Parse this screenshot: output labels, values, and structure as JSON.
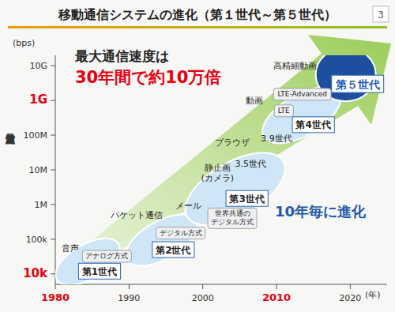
{
  "chart_data": {
    "type": "scatter",
    "title": "移動通信システムの進化（第１世代～第５世代）",
    "page": "3",
    "headline": "最大通信速度は",
    "headline_emphasis": "30年間で約10万倍",
    "annotation_main": "10年毎に進化",
    "x_label": "(年)",
    "y_label": "最大通信速度",
    "y_unit": "(bps)",
    "log": "y",
    "grid": false,
    "x": [
      1986,
      1996,
      2006,
      2015,
      2021
    ],
    "values": [
      12000,
      50000,
      1500000,
      200000000,
      3000000000
    ],
    "labels": [
      "第1世代",
      "第2世代",
      "第3世代",
      "第4世代",
      "第５世代"
    ],
    "colors": [
      "#cfe6f6",
      "#cfe6f6",
      "#cfe6f6",
      "#cfe6f6",
      "#1d4f9e"
    ],
    "xlim": [
      1980,
      2025
    ],
    "xticks": [
      {
        "value": 1980,
        "label": "1980",
        "color": "#e60012"
      },
      1990,
      2000,
      {
        "value": 2010,
        "label": "2010",
        "color": "#e60012"
      },
      2020
    ],
    "ylim": [
      5000,
      20000000000
    ],
    "yticks": [
      {
        "value": 10000,
        "label": "10k",
        "color": "#e60012"
      },
      {
        "value": 100000,
        "label": "100k"
      },
      {
        "value": 1000000,
        "label": "1M"
      },
      {
        "value": 10000000,
        "label": "10M"
      },
      {
        "value": 100000000,
        "label": "100M"
      },
      {
        "value": 1000000000,
        "label": "1G",
        "color": "#e60012"
      },
      {
        "value": 10000000000,
        "label": "10G"
      }
    ],
    "annotations": [
      {
        "text": "音声",
        "x": 1982,
        "y": 55000,
        "marker": "text"
      },
      {
        "text": "アナログ方式",
        "x": 1987,
        "y": 32000,
        "marker": "box"
      },
      {
        "text": "パケット通信",
        "x": 1991,
        "y": 500000,
        "marker": "text"
      },
      {
        "text": "デジタル方式",
        "x": 1997,
        "y": 150000,
        "marker": "box"
      },
      {
        "text": "メール",
        "x": 1998,
        "y": 900000,
        "marker": "text"
      },
      {
        "text": "静止画\n(カメラ)",
        "x": 2002,
        "y": 8000000,
        "marker": "text"
      },
      {
        "text": "世界共通の\nデジタル方式",
        "x": 2004,
        "y": 400000,
        "marker": "box"
      },
      {
        "text": "ブラウザ",
        "x": 2004,
        "y": 60000000,
        "marker": "text"
      },
      {
        "text": "3.5世代",
        "x": 2006.5,
        "y": 15000000,
        "marker": "text"
      },
      {
        "text": "3.9世代",
        "x": 2010,
        "y": 80000000,
        "marker": "text"
      },
      {
        "text": "動画",
        "x": 2007,
        "y": 1000000000,
        "marker": "text"
      },
      {
        "text": "LTE",
        "x": 2011,
        "y": 500000000,
        "marker": "box"
      },
      {
        "text": "高精細動画",
        "x": 2012.5,
        "y": 10000000000,
        "marker": "text"
      },
      {
        "text": "LTE-Advanced",
        "x": 2013.5,
        "y": 1500000000,
        "marker": "box"
      }
    ]
  }
}
